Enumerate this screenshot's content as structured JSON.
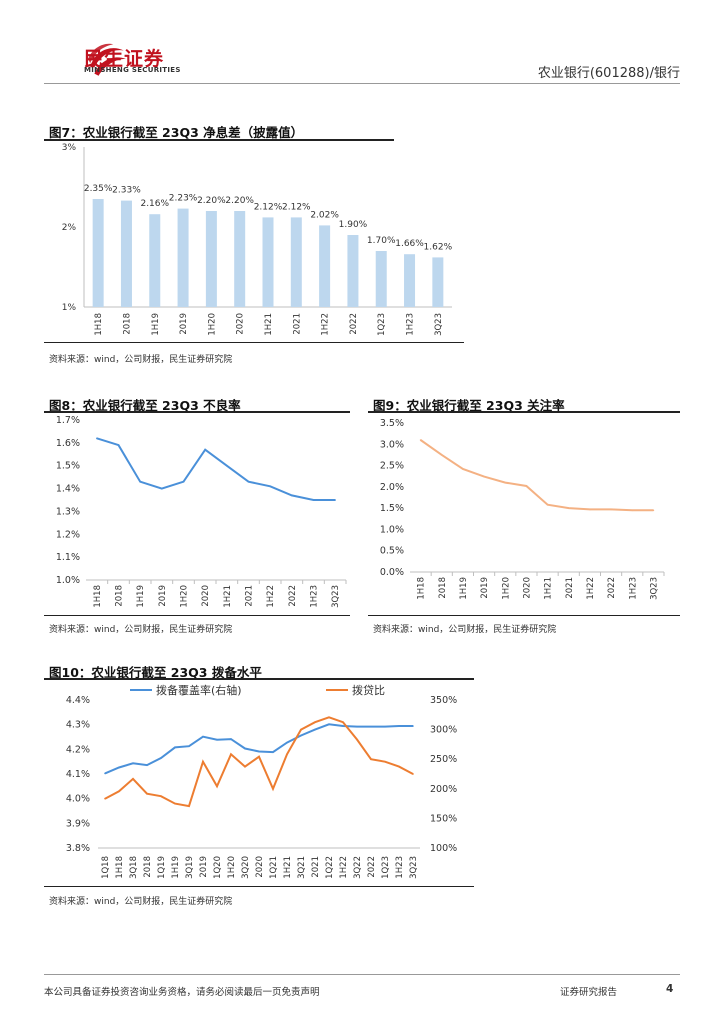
{
  "header": {
    "logo_cn": "民生证券",
    "logo_en": "MINSHENG SECURITIES",
    "report_subject": "农业银行(601288)/银行"
  },
  "figures": {
    "fig7": {
      "title": "图7：农业银行截至 23Q3 净息差（披露值）",
      "source": "资料来源：wind，公司财报，民生证券研究院"
    },
    "fig8": {
      "title": "图8：农业银行截至 23Q3 不良率",
      "source": "资料来源：wind，公司财报，民生证券研究院"
    },
    "fig9": {
      "title": "图9：农业银行截至 23Q3 关注率",
      "source": "资料来源：wind，公司财报，民生证券研究院"
    },
    "fig10": {
      "title": "图10：农业银行截至 23Q3 拨备水平",
      "source": "资料来源：wind，公司财报，民生证券研究院"
    }
  },
  "footer": {
    "disclaimer": "本公司具备证券投资咨询业务资格，请务必阅读最后一页免责声明",
    "report_type": "证券研究报告",
    "page_number": "4"
  },
  "colors": {
    "brand": "#c1121f",
    "bar": "#bdd7ee",
    "line_blue": "#4a90d9",
    "line_orange": "#f4b183",
    "line_orange_dark": "#ed7d31"
  },
  "chart_data": [
    {
      "id": "fig7",
      "type": "bar",
      "title": "农业银行截至 23Q3 净息差（披露值）",
      "categories": [
        "1H18",
        "2018",
        "1H19",
        "2019",
        "1H20",
        "2020",
        "1H21",
        "2021",
        "1H22",
        "2022",
        "1Q23",
        "1H23",
        "3Q23"
      ],
      "values": [
        2.35,
        2.33,
        2.16,
        2.23,
        2.2,
        2.2,
        2.12,
        2.12,
        2.02,
        1.9,
        1.7,
        1.66,
        1.62
      ],
      "data_labels": [
        "2.35%",
        "2.33%",
        "2.16%",
        "2.23%",
        "2.20%",
        "2.20%",
        "2.12%",
        "2.12%",
        "2.02%",
        "1.90%",
        "1.70%",
        "1.66%",
        "1.62%"
      ],
      "ylim": [
        1,
        3
      ],
      "yticks": [
        "1%",
        "2%",
        "3%"
      ],
      "ytick_values": [
        1,
        2,
        3
      ]
    },
    {
      "id": "fig8",
      "type": "line",
      "title": "农业银行截至 23Q3 不良率",
      "categories": [
        "1H18",
        "2018",
        "1H19",
        "2019",
        "1H20",
        "2020",
        "1H21",
        "2021",
        "1H22",
        "2022",
        "1H23",
        "3Q23"
      ],
      "values": [
        1.62,
        1.59,
        1.43,
        1.4,
        1.43,
        1.57,
        1.5,
        1.43,
        1.41,
        1.37,
        1.35,
        1.35
      ],
      "ylim": [
        1.0,
        1.7
      ],
      "yticks": [
        "1.0%",
        "1.1%",
        "1.2%",
        "1.3%",
        "1.4%",
        "1.5%",
        "1.6%",
        "1.7%"
      ],
      "ytick_values": [
        1.0,
        1.1,
        1.2,
        1.3,
        1.4,
        1.5,
        1.6,
        1.7
      ]
    },
    {
      "id": "fig9",
      "type": "line",
      "title": "农业银行截至 23Q3 关注率",
      "categories": [
        "1H18",
        "2018",
        "1H19",
        "2019",
        "1H20",
        "2020",
        "1H21",
        "2021",
        "1H22",
        "2022",
        "1H23",
        "3Q23"
      ],
      "values": [
        3.1,
        2.75,
        2.42,
        2.24,
        2.1,
        2.02,
        1.58,
        1.5,
        1.47,
        1.47,
        1.45,
        1.45
      ],
      "ylim": [
        0,
        3.5
      ],
      "yticks": [
        "0.0%",
        "0.5%",
        "1.0%",
        "1.5%",
        "2.0%",
        "2.5%",
        "3.0%",
        "3.5%"
      ],
      "ytick_values": [
        0,
        0.5,
        1.0,
        1.5,
        2.0,
        2.5,
        3.0,
        3.5
      ]
    },
    {
      "id": "fig10",
      "type": "line",
      "title": "农业银行截至 23Q3 拨备水平",
      "categories": [
        "1Q18",
        "1H18",
        "3Q18",
        "2018",
        "1Q19",
        "1H19",
        "3Q19",
        "2019",
        "1Q20",
        "1H20",
        "3Q20",
        "2020",
        "1Q21",
        "1H21",
        "3Q21",
        "2021",
        "1Q22",
        "1H22",
        "3Q22",
        "2022",
        "1Q23",
        "1H23",
        "3Q23"
      ],
      "series": [
        {
          "name": "拨备覆盖率(右轴)",
          "axis": "right",
          "values": [
            226,
            236,
            243,
            240,
            252,
            270,
            272,
            288,
            283,
            284,
            268,
            263,
            262,
            278,
            290,
            300,
            309,
            306,
            305,
            305,
            305,
            306,
            306
          ]
        },
        {
          "name": "拨贷比",
          "axis": "left",
          "values": [
            4.0,
            4.03,
            4.08,
            4.02,
            4.01,
            3.98,
            3.97,
            4.15,
            4.05,
            4.18,
            4.13,
            4.17,
            4.04,
            4.18,
            4.28,
            4.31,
            4.33,
            4.31,
            4.24,
            4.16,
            4.15,
            4.13,
            4.1
          ]
        }
      ],
      "ylim_left": [
        3.8,
        4.4
      ],
      "yticks_left": [
        "3.8%",
        "3.9%",
        "4.0%",
        "4.1%",
        "4.2%",
        "4.3%",
        "4.4%"
      ],
      "ytick_values_left": [
        3.8,
        3.9,
        4.0,
        4.1,
        4.2,
        4.3,
        4.4
      ],
      "ylim_right": [
        100,
        350
      ],
      "yticks_right": [
        "100%",
        "150%",
        "200%",
        "250%",
        "300%",
        "350%"
      ],
      "ytick_values_right": [
        100,
        150,
        200,
        250,
        300,
        350
      ]
    }
  ]
}
